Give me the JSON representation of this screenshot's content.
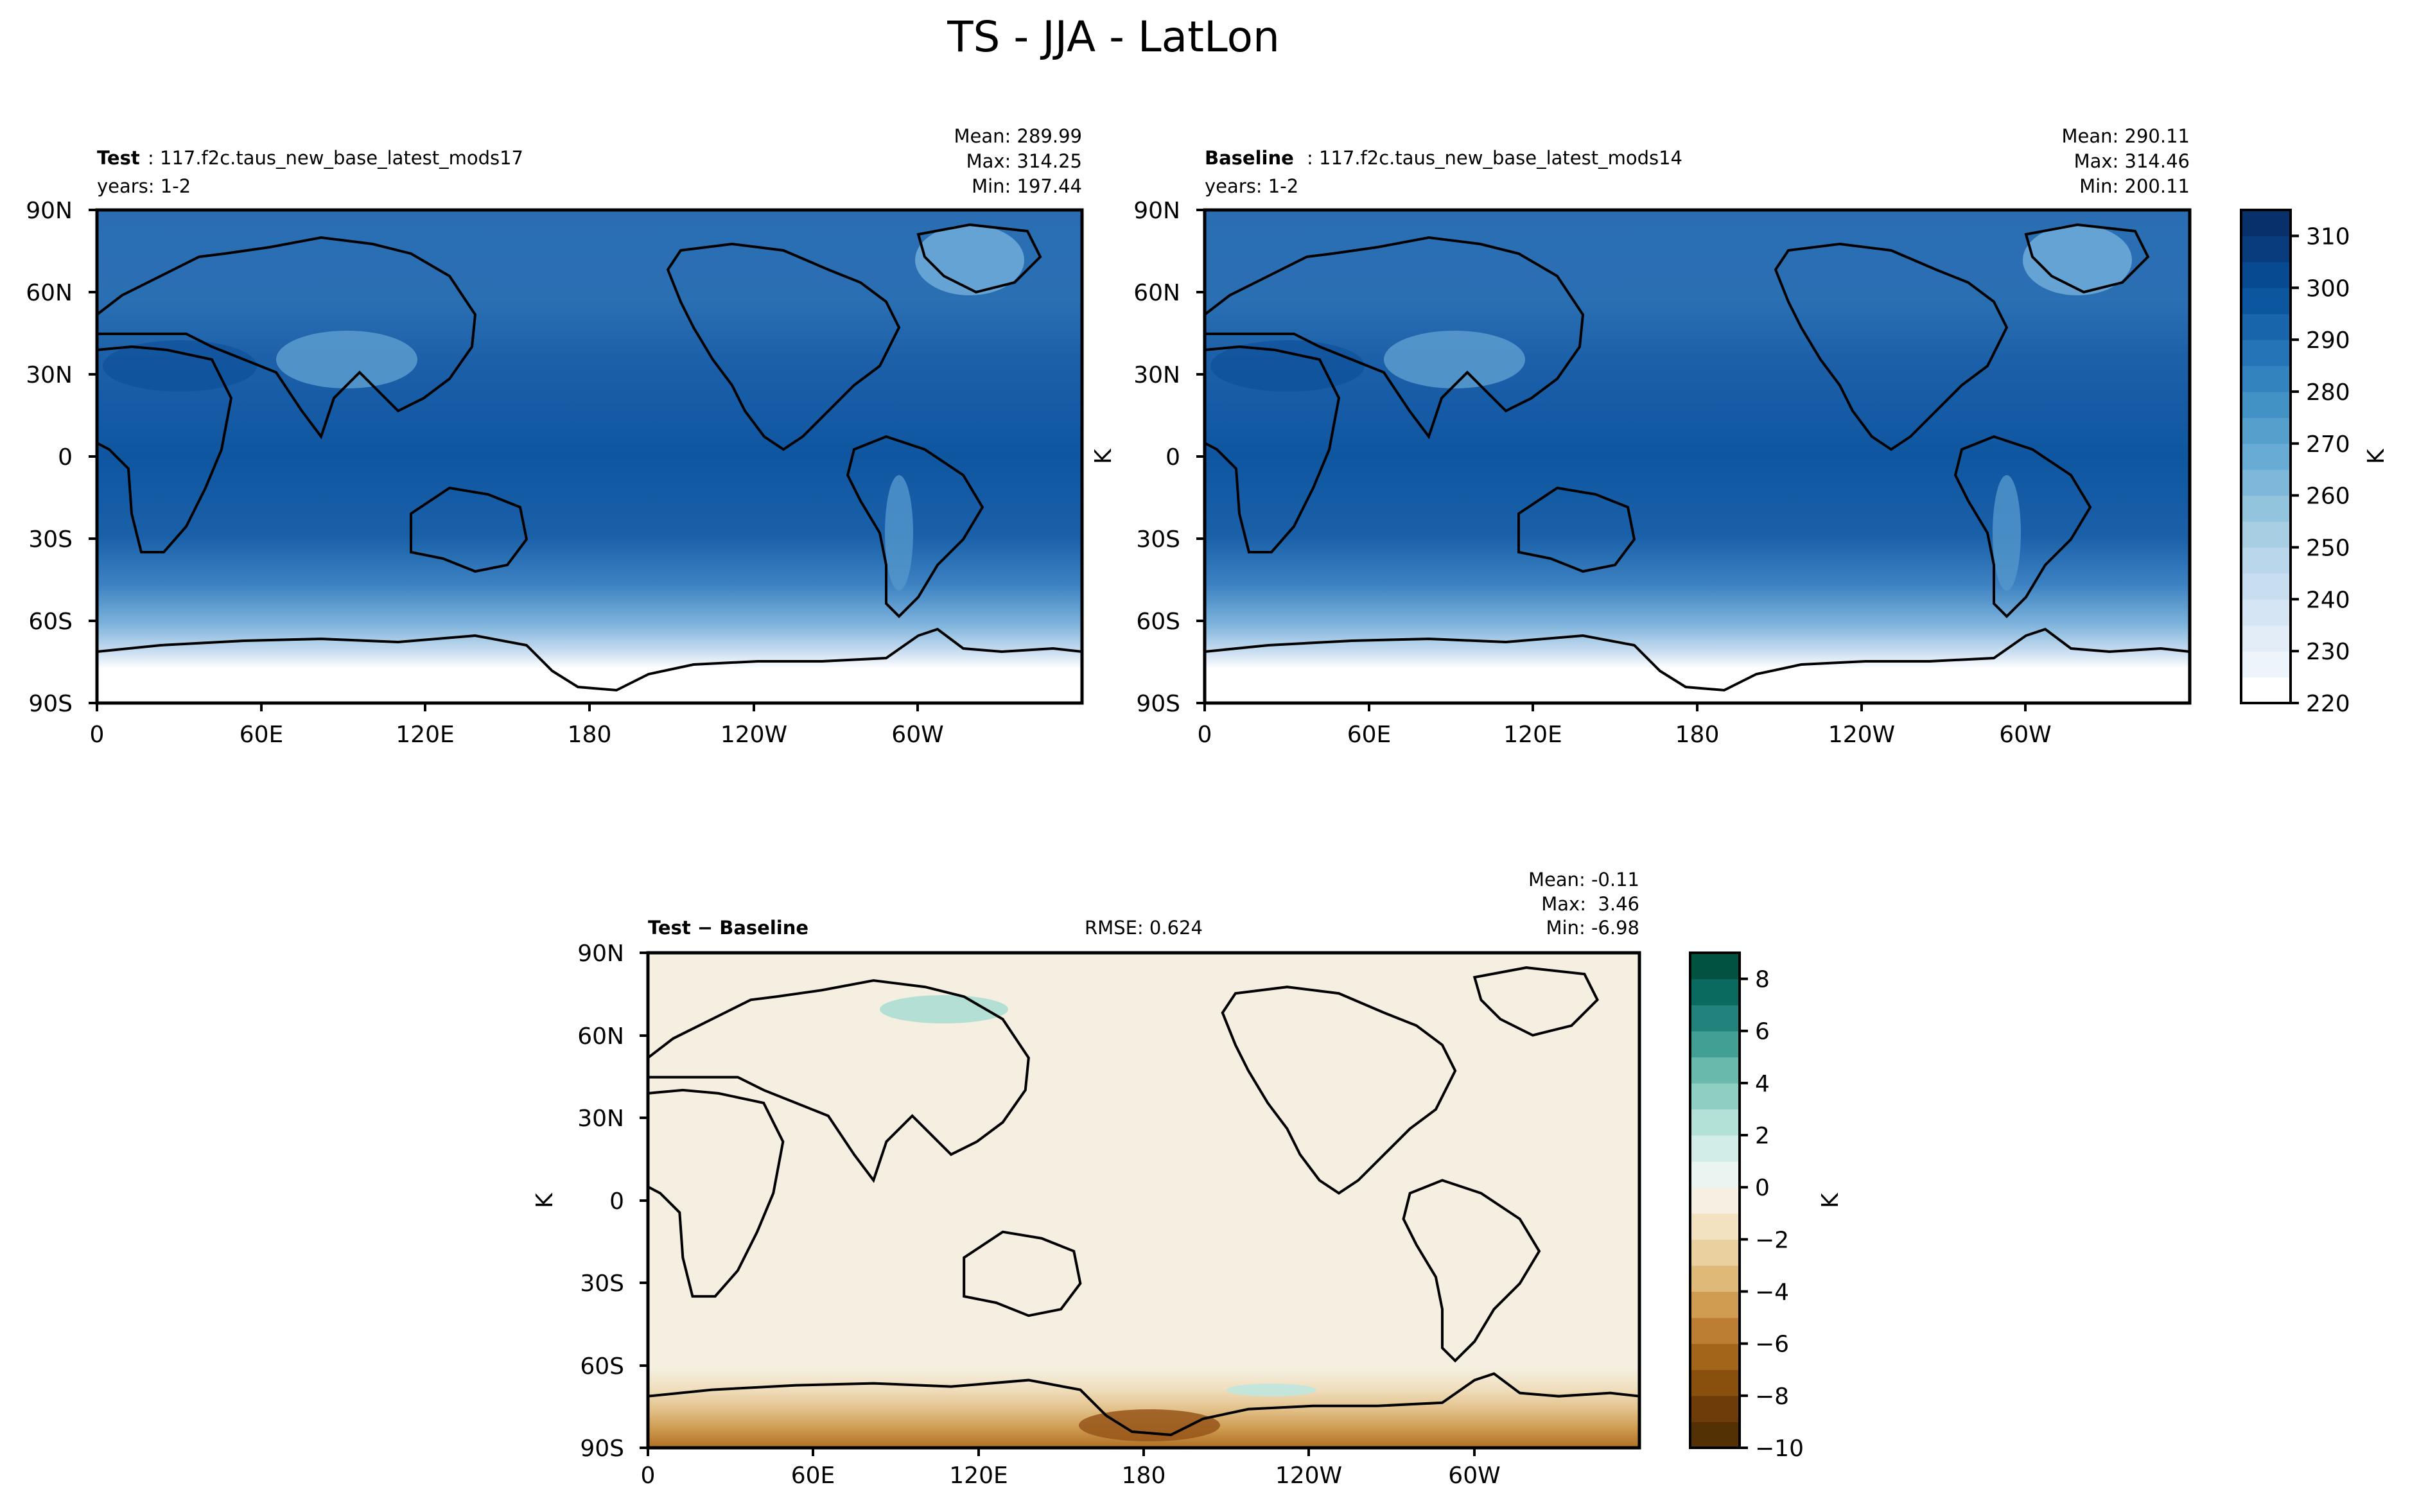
{
  "figure": {
    "suptitle": "TS - JJA - LatLon"
  },
  "chart_data": [
    {
      "type": "heatmap",
      "panel": "test",
      "title_bold": "Test",
      "title_rest": ": 117.f2c.taus_new_base_latest_mods17",
      "years": "years: 1-2",
      "stats": [
        "Mean: 289.99",
        "Max: 314.25",
        "Min: 197.44"
      ],
      "xticks": [
        "0",
        "60E",
        "120E",
        "180",
        "120W",
        "60W"
      ],
      "yticks": [
        "90N",
        "60N",
        "30N",
        "0",
        "30S",
        "60S",
        "90S"
      ],
      "ylabel": "",
      "variable": "TS",
      "units": "K",
      "stats_values": {
        "mean": 289.99,
        "max": 314.25,
        "min": 197.44
      }
    },
    {
      "type": "heatmap",
      "panel": "baseline",
      "title_bold": "Baseline",
      "title_rest": ": 117.f2c.taus_new_base_latest_mods14",
      "years": "years: 1-2",
      "stats": [
        "Mean: 290.11",
        "Max: 314.46",
        "Min: 200.11"
      ],
      "xticks": [
        "0",
        "60E",
        "120E",
        "180",
        "120W",
        "60W"
      ],
      "yticks": [
        "90N",
        "60N",
        "30N",
        "0",
        "30S",
        "60S",
        "90S"
      ],
      "ylabel": "K",
      "variable": "TS",
      "units": "K",
      "stats_values": {
        "mean": 290.11,
        "max": 314.46,
        "min": 200.11
      }
    },
    {
      "type": "heatmap",
      "panel": "diff",
      "title_bold": "Test − Baseline",
      "rmse": "RMSE: 0.624",
      "stats": [
        "Mean: -0.11",
        "Max:  3.46",
        "Min: -6.98"
      ],
      "xticks": [
        "0",
        "60E",
        "120E",
        "180",
        "120W",
        "60W"
      ],
      "yticks": [
        "90N",
        "60N",
        "30N",
        "0",
        "30S",
        "60S",
        "90S"
      ],
      "ylabel": "K",
      "variable": "TS difference",
      "units": "K",
      "stats_values": {
        "mean": -0.11,
        "max": 3.46,
        "min": -6.98,
        "rmse": 0.624
      }
    }
  ],
  "colorbars": {
    "main": {
      "label": "K",
      "ticks": [
        "310",
        "300",
        "290",
        "280",
        "270",
        "260",
        "250",
        "240",
        "230",
        "220"
      ],
      "range": [
        220,
        315
      ],
      "colors": [
        "#ffffff",
        "#eef4fb",
        "#e2edf8",
        "#d5e5f4",
        "#c9ddf0",
        "#bad6eb",
        "#a8cee4",
        "#93c4de",
        "#7db8da",
        "#68acd5",
        "#559fcd",
        "#4392c6",
        "#3383be",
        "#2474b7",
        "#1865ac",
        "#0c56a0",
        "#084a91",
        "#083c7d",
        "#08306b"
      ]
    },
    "diff": {
      "label": "K",
      "ticks": [
        "8",
        "6",
        "4",
        "2",
        "0",
        "−2",
        "−4",
        "−6",
        "−8",
        "−10"
      ],
      "range": [
        -10,
        9
      ],
      "colors": [
        "#543005",
        "#6d3c08",
        "#88500c",
        "#a3651a",
        "#bb7e32",
        "#cf9c52",
        "#deb978",
        "#e9d09e",
        "#f2e2c0",
        "#f5f0e1",
        "#eaf4f1",
        "#d2ede8",
        "#b3e1d8",
        "#8ecfc3",
        "#69baac",
        "#429f94",
        "#21837b",
        "#0b6a5f",
        "#01523f"
      ]
    }
  }
}
